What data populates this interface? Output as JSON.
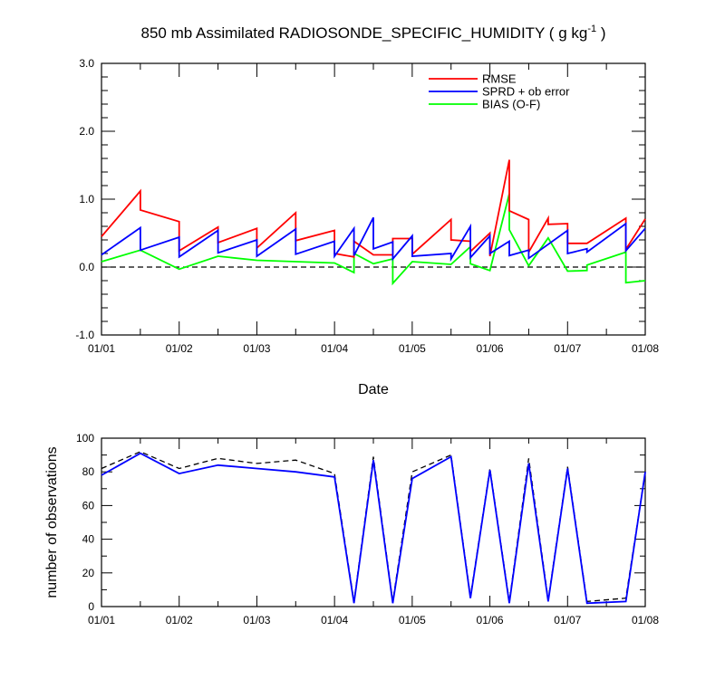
{
  "chart_data": [
    {
      "type": "line",
      "title": "850 mb Assimilated RADIOSONDE_SPECIFIC_HUMIDITY ( g kg",
      "title_sup": "-1",
      "title_end": " )",
      "xlabel": "Date",
      "ylabel": "",
      "xlim": [
        0,
        7
      ],
      "ylim": [
        -1.0,
        3.0
      ],
      "xticks": [
        "01/01",
        "01/02",
        "01/03",
        "01/04",
        "01/05",
        "01/06",
        "01/07",
        "01/08"
      ],
      "yticks": [
        "-1.0",
        "0.0",
        "1.0",
        "2.0",
        "3.0"
      ],
      "zero_line": 0.0,
      "legend": [
        "RMSE",
        "SPRD + ob error",
        "BIAS (O-F)"
      ],
      "colors": {
        "RMSE": "#ff0000",
        "SPRD": "#0000ff",
        "BIAS": "#00ff00"
      },
      "series": [
        {
          "name": "RMSE",
          "points": [
            [
              0.0,
              0.45
            ],
            [
              0.5,
              1.12
            ],
            [
              0.5,
              0.84
            ],
            [
              1.0,
              0.67
            ],
            [
              1.0,
              0.24
            ],
            [
              1.5,
              0.59
            ],
            [
              1.5,
              0.36
            ],
            [
              2.0,
              0.57
            ],
            [
              2.0,
              0.28
            ],
            [
              2.5,
              0.8
            ],
            [
              2.5,
              0.39
            ],
            [
              3.0,
              0.54
            ],
            [
              3.0,
              0.2
            ],
            [
              3.25,
              0.15
            ],
            [
              3.25,
              0.38
            ],
            [
              3.5,
              0.18
            ],
            [
              3.75,
              0.18
            ],
            [
              3.75,
              0.42
            ],
            [
              4.0,
              0.42
            ],
            [
              4.0,
              0.19
            ],
            [
              4.5,
              0.7
            ],
            [
              4.5,
              0.4
            ],
            [
              4.75,
              0.38
            ],
            [
              4.75,
              0.23
            ],
            [
              5.0,
              0.5
            ],
            [
              5.0,
              0.16
            ],
            [
              5.25,
              1.58
            ],
            [
              5.25,
              0.83
            ],
            [
              5.5,
              0.7
            ],
            [
              5.5,
              0.22
            ],
            [
              5.75,
              0.72
            ],
            [
              5.75,
              0.63
            ],
            [
              6.0,
              0.64
            ],
            [
              6.0,
              0.35
            ],
            [
              6.25,
              0.35
            ],
            [
              6.75,
              0.72
            ],
            [
              6.75,
              0.26
            ],
            [
              7.0,
              0.71
            ]
          ]
        },
        {
          "name": "SPRD + ob error",
          "points": [
            [
              0.0,
              0.18
            ],
            [
              0.5,
              0.58
            ],
            [
              0.5,
              0.25
            ],
            [
              1.0,
              0.44
            ],
            [
              1.0,
              0.15
            ],
            [
              1.5,
              0.54
            ],
            [
              1.5,
              0.21
            ],
            [
              2.0,
              0.4
            ],
            [
              2.0,
              0.16
            ],
            [
              2.5,
              0.56
            ],
            [
              2.5,
              0.19
            ],
            [
              3.0,
              0.38
            ],
            [
              3.0,
              0.16
            ],
            [
              3.25,
              0.57
            ],
            [
              3.25,
              0.17
            ],
            [
              3.5,
              0.73
            ],
            [
              3.5,
              0.27
            ],
            [
              3.75,
              0.37
            ],
            [
              3.75,
              0.12
            ],
            [
              4.0,
              0.46
            ],
            [
              4.0,
              0.16
            ],
            [
              4.5,
              0.2
            ],
            [
              4.5,
              0.12
            ],
            [
              4.75,
              0.6
            ],
            [
              4.75,
              0.14
            ],
            [
              5.0,
              0.46
            ],
            [
              5.0,
              0.2
            ],
            [
              5.25,
              0.38
            ],
            [
              5.25,
              0.17
            ],
            [
              5.5,
              0.25
            ],
            [
              5.5,
              0.13
            ],
            [
              6.0,
              0.54
            ],
            [
              6.0,
              0.2
            ],
            [
              6.25,
              0.27
            ],
            [
              6.25,
              0.22
            ],
            [
              6.75,
              0.64
            ],
            [
              6.75,
              0.24
            ],
            [
              7.0,
              0.57
            ]
          ]
        },
        {
          "name": "BIAS (O-F)",
          "points": [
            [
              0.0,
              0.08
            ],
            [
              0.5,
              0.25
            ],
            [
              1.0,
              -0.03
            ],
            [
              1.5,
              0.16
            ],
            [
              2.0,
              0.1
            ],
            [
              2.5,
              0.08
            ],
            [
              3.0,
              0.06
            ],
            [
              3.25,
              -0.08
            ],
            [
              3.25,
              0.2
            ],
            [
              3.5,
              0.05
            ],
            [
              3.75,
              0.12
            ],
            [
              3.75,
              -0.24
            ],
            [
              4.0,
              0.08
            ],
            [
              4.5,
              0.04
            ],
            [
              4.75,
              0.3
            ],
            [
              4.75,
              0.05
            ],
            [
              5.0,
              -0.05
            ],
            [
              5.25,
              1.08
            ],
            [
              5.25,
              0.55
            ],
            [
              5.5,
              0.02
            ],
            [
              5.75,
              0.43
            ],
            [
              6.0,
              -0.06
            ],
            [
              6.25,
              -0.05
            ],
            [
              6.25,
              0.03
            ],
            [
              6.75,
              0.22
            ],
            [
              6.75,
              -0.23
            ],
            [
              7.0,
              -0.2
            ]
          ]
        }
      ]
    },
    {
      "type": "line",
      "title": "",
      "xlabel": "",
      "ylabel": "number of observations",
      "xlim": [
        0,
        7
      ],
      "ylim": [
        0,
        100
      ],
      "xticks": [
        "01/01",
        "01/02",
        "01/03",
        "01/04",
        "01/05",
        "01/06",
        "01/07",
        "01/08"
      ],
      "yticks": [
        "0",
        "20",
        "40",
        "60",
        "80",
        "100"
      ],
      "colors": {
        "assimilated": "#0000ff",
        "possible": "#000000"
      },
      "series": [
        {
          "name": "possible",
          "style": "dashed",
          "points": [
            [
              0.0,
              82
            ],
            [
              0.5,
              92
            ],
            [
              1.0,
              82
            ],
            [
              1.5,
              88
            ],
            [
              2.0,
              85
            ],
            [
              2.5,
              87
            ],
            [
              3.0,
              79
            ],
            [
              3.25,
              3
            ],
            [
              3.5,
              89
            ],
            [
              3.75,
              3
            ],
            [
              4.0,
              80
            ],
            [
              4.5,
              90
            ],
            [
              4.75,
              6
            ],
            [
              5.0,
              82
            ],
            [
              5.25,
              3
            ],
            [
              5.5,
              88
            ],
            [
              5.75,
              4
            ],
            [
              6.0,
              83
            ],
            [
              6.25,
              3
            ],
            [
              6.75,
              5
            ],
            [
              7.0,
              80
            ]
          ]
        },
        {
          "name": "assimilated",
          "style": "solid",
          "points": [
            [
              0.0,
              78
            ],
            [
              0.5,
              91
            ],
            [
              1.0,
              79
            ],
            [
              1.5,
              84
            ],
            [
              2.0,
              82
            ],
            [
              2.5,
              80
            ],
            [
              3.0,
              77
            ],
            [
              3.25,
              2
            ],
            [
              3.5,
              87
            ],
            [
              3.75,
              2
            ],
            [
              4.0,
              76
            ],
            [
              4.5,
              89
            ],
            [
              4.75,
              5
            ],
            [
              5.0,
              81
            ],
            [
              5.25,
              2
            ],
            [
              5.5,
              85
            ],
            [
              5.75,
              3
            ],
            [
              6.0,
              82
            ],
            [
              6.25,
              2
            ],
            [
              6.75,
              3
            ],
            [
              7.0,
              80
            ]
          ]
        }
      ]
    }
  ]
}
